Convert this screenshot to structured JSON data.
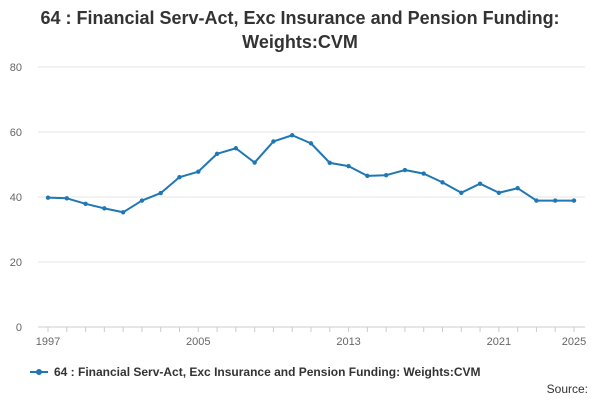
{
  "chart_data": {
    "type": "line",
    "title_line1": "64 : Financial Serv-Act, Exc Insurance and Pension Funding:",
    "title_line2": "Weights:CVM",
    "xlabel": "",
    "ylabel": "",
    "x_ticks": [
      "1997",
      "2005",
      "2013",
      "2021",
      "2025"
    ],
    "y_ticks": [
      "0",
      "20",
      "40",
      "60",
      "80"
    ],
    "xlim": [
      1997,
      2025
    ],
    "ylim": [
      0,
      80
    ],
    "grid": true,
    "legend_position": "bottom-left",
    "color": "#1f77b4",
    "x": [
      1997,
      1998,
      1999,
      2000,
      2001,
      2002,
      2003,
      2004,
      2005,
      2006,
      2007,
      2008,
      2009,
      2010,
      2011,
      2012,
      2013,
      2014,
      2015,
      2016,
      2017,
      2018,
      2019,
      2020,
      2021,
      2022,
      2023,
      2024,
      2025
    ],
    "series": [
      {
        "name": "64 : Financial Serv-Act, Exc Insurance and Pension Funding: Weights:CVM",
        "values": [
          39.8,
          39.6,
          37.9,
          36.5,
          35.3,
          38.9,
          41.2,
          46.1,
          47.8,
          53.3,
          55.0,
          50.6,
          57.1,
          59.0,
          56.5,
          50.5,
          49.5,
          46.5,
          46.7,
          48.3,
          47.2,
          44.5,
          41.3,
          44.1,
          41.3,
          42.7,
          38.9,
          38.9,
          38.9
        ]
      }
    ]
  },
  "footer": {
    "source_label": "Source:"
  }
}
